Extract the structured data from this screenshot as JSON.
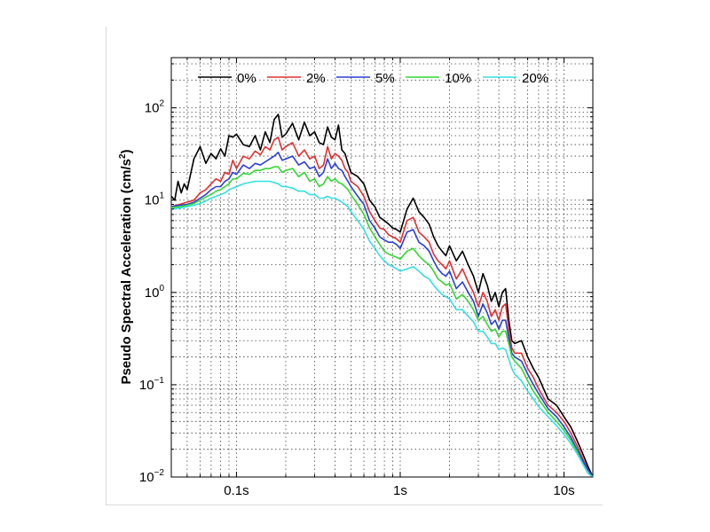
{
  "chart_data": {
    "type": "line",
    "x_scale": "log",
    "y_scale": "log",
    "xlim": [
      0.04,
      15
    ],
    "ylim": [
      0.01,
      350
    ],
    "grid": true,
    "legend_placement": "top",
    "ylabel": "Pseudo Spectral Acceleration (cm/s²)",
    "ylabel_text": "Pseudo Spectral Acceleration (cm/s",
    "ylabel_sup": "2",
    "ylabel_close": ")",
    "x_ticks": [
      {
        "value": 0.1,
        "label": "0.1s"
      },
      {
        "value": 1,
        "label": "1s"
      },
      {
        "value": 10,
        "label": "10s"
      }
    ],
    "y_ticks": [
      {
        "value": 100,
        "base": "10",
        "exp": "2"
      },
      {
        "value": 10,
        "base": "10",
        "exp": "1"
      },
      {
        "value": 1,
        "base": "10",
        "exp": "0"
      },
      {
        "value": 0.1,
        "base": "10",
        "exp": "−1"
      },
      {
        "value": 0.01,
        "base": "10",
        "exp": "−2"
      }
    ],
    "series": [
      {
        "name": "0%",
        "color": "#000000",
        "x": [
          0.04,
          0.042,
          0.044,
          0.046,
          0.048,
          0.05,
          0.055,
          0.06,
          0.065,
          0.07,
          0.075,
          0.08,
          0.085,
          0.09,
          0.095,
          0.1,
          0.11,
          0.12,
          0.13,
          0.14,
          0.15,
          0.16,
          0.17,
          0.18,
          0.19,
          0.2,
          0.22,
          0.24,
          0.26,
          0.28,
          0.3,
          0.32,
          0.34,
          0.36,
          0.38,
          0.4,
          0.42,
          0.44,
          0.46,
          0.48,
          0.5,
          0.55,
          0.6,
          0.65,
          0.7,
          0.75,
          0.8,
          0.85,
          0.9,
          0.95,
          1.0,
          1.1,
          1.2,
          1.3,
          1.4,
          1.5,
          1.6,
          1.7,
          1.8,
          1.9,
          2.0,
          2.2,
          2.4,
          2.6,
          2.8,
          3.0,
          3.2,
          3.4,
          3.6,
          3.8,
          4.0,
          4.2,
          4.4,
          4.6,
          4.8,
          5.0,
          5.5,
          6.0,
          6.5,
          7.0,
          8.0,
          9.0,
          10.0,
          11.0,
          12.0,
          13.0,
          14.0,
          15.0
        ],
        "y": [
          11,
          10,
          16,
          12,
          15,
          13,
          28,
          38,
          25,
          32,
          28,
          36,
          30,
          50,
          48,
          52,
          40,
          38,
          50,
          35,
          55,
          42,
          75,
          85,
          48,
          52,
          68,
          45,
          70,
          50,
          55,
          42,
          40,
          62,
          48,
          45,
          65,
          35,
          32,
          25,
          20,
          18,
          15,
          10,
          8.5,
          6.5,
          6.0,
          5.5,
          5.0,
          4.8,
          4.5,
          8.0,
          10.5,
          7.5,
          6.5,
          5.5,
          4.0,
          3.2,
          2.8,
          2.5,
          3.2,
          2.2,
          2.8,
          2.0,
          1.5,
          1.0,
          1.6,
          1.2,
          0.8,
          1.0,
          0.7,
          1.0,
          1.1,
          0.5,
          0.3,
          0.28,
          0.3,
          0.2,
          0.15,
          0.12,
          0.07,
          0.06,
          0.045,
          0.035,
          0.025,
          0.018,
          0.013,
          0.01
        ]
      },
      {
        "name": "2%",
        "color": "#e03030",
        "x": [
          0.04,
          0.045,
          0.05,
          0.055,
          0.06,
          0.065,
          0.07,
          0.075,
          0.08,
          0.085,
          0.09,
          0.095,
          0.1,
          0.11,
          0.12,
          0.13,
          0.14,
          0.15,
          0.16,
          0.17,
          0.18,
          0.19,
          0.2,
          0.22,
          0.24,
          0.26,
          0.28,
          0.3,
          0.32,
          0.34,
          0.36,
          0.38,
          0.4,
          0.42,
          0.44,
          0.46,
          0.48,
          0.5,
          0.55,
          0.6,
          0.65,
          0.7,
          0.75,
          0.8,
          0.85,
          0.9,
          0.95,
          1.0,
          1.1,
          1.2,
          1.3,
          1.4,
          1.5,
          1.6,
          1.7,
          1.8,
          1.9,
          2.0,
          2.2,
          2.4,
          2.6,
          2.8,
          3.0,
          3.2,
          3.4,
          3.6,
          3.8,
          4.0,
          4.2,
          4.4,
          4.6,
          4.8,
          5.0,
          5.5,
          6.0,
          6.5,
          7.0,
          8.0,
          9.0,
          10.0,
          11.0,
          12.0,
          13.0,
          14.0,
          15.0
        ],
        "y": [
          8.5,
          9.0,
          9.5,
          10,
          12,
          13,
          15,
          17,
          16,
          20,
          19,
          27,
          22,
          30,
          28,
          34,
          31,
          38,
          35,
          45,
          48,
          35,
          38,
          42,
          30,
          35,
          28,
          30,
          22,
          24,
          38,
          28,
          32,
          30,
          27,
          22,
          20,
          16,
          14,
          11,
          7.5,
          6.0,
          5.0,
          4.8,
          4.2,
          4.0,
          3.8,
          3.5,
          6.0,
          6.5,
          4.5,
          4.0,
          3.5,
          2.6,
          2.2,
          2.0,
          1.8,
          2.2,
          1.4,
          1.8,
          1.3,
          1.0,
          0.7,
          1.0,
          0.8,
          0.55,
          0.65,
          0.5,
          0.7,
          0.75,
          0.4,
          0.25,
          0.22,
          0.22,
          0.15,
          0.12,
          0.09,
          0.06,
          0.05,
          0.04,
          0.03,
          0.022,
          0.016,
          0.012,
          0.01
        ]
      },
      {
        "name": "5%",
        "color": "#2a3fd6",
        "x": [
          0.04,
          0.045,
          0.05,
          0.055,
          0.06,
          0.065,
          0.07,
          0.075,
          0.08,
          0.085,
          0.09,
          0.095,
          0.1,
          0.11,
          0.12,
          0.13,
          0.14,
          0.15,
          0.16,
          0.17,
          0.18,
          0.19,
          0.2,
          0.22,
          0.24,
          0.26,
          0.28,
          0.3,
          0.32,
          0.34,
          0.36,
          0.38,
          0.4,
          0.42,
          0.44,
          0.46,
          0.48,
          0.5,
          0.55,
          0.6,
          0.65,
          0.7,
          0.75,
          0.8,
          0.85,
          0.9,
          0.95,
          1.0,
          1.1,
          1.2,
          1.3,
          1.4,
          1.5,
          1.6,
          1.7,
          1.8,
          1.9,
          2.0,
          2.2,
          2.4,
          2.6,
          2.8,
          3.0,
          3.2,
          3.4,
          3.6,
          3.8,
          4.0,
          4.2,
          4.4,
          4.6,
          4.8,
          5.0,
          5.5,
          6.0,
          6.5,
          7.0,
          8.0,
          9.0,
          10.0,
          11.0,
          12.0,
          13.0,
          14.0,
          15.0
        ],
        "y": [
          8.5,
          8.8,
          9.0,
          9.5,
          10.5,
          11.5,
          13,
          14,
          14,
          16,
          17,
          20,
          19,
          24,
          22,
          25,
          24,
          26,
          28,
          30,
          33,
          27,
          28,
          30,
          24,
          26,
          22,
          23,
          18,
          20,
          28,
          22,
          25,
          22,
          21,
          18,
          16,
          14,
          11,
          9.0,
          6.0,
          5.0,
          4.0,
          3.7,
          3.5,
          3.5,
          3.3,
          3.0,
          4.5,
          4.8,
          3.5,
          3.2,
          2.8,
          2.2,
          1.8,
          1.6,
          1.5,
          1.7,
          1.1,
          1.3,
          1.0,
          0.8,
          0.55,
          0.75,
          0.6,
          0.45,
          0.5,
          0.4,
          0.5,
          0.5,
          0.32,
          0.22,
          0.2,
          0.18,
          0.13,
          0.1,
          0.08,
          0.055,
          0.045,
          0.035,
          0.027,
          0.02,
          0.015,
          0.012,
          0.01
        ]
      },
      {
        "name": "10%",
        "color": "#33d633",
        "x": [
          0.04,
          0.045,
          0.05,
          0.055,
          0.06,
          0.065,
          0.07,
          0.075,
          0.08,
          0.085,
          0.09,
          0.095,
          0.1,
          0.11,
          0.12,
          0.13,
          0.14,
          0.15,
          0.16,
          0.17,
          0.18,
          0.19,
          0.2,
          0.22,
          0.24,
          0.26,
          0.28,
          0.3,
          0.32,
          0.34,
          0.36,
          0.38,
          0.4,
          0.42,
          0.44,
          0.46,
          0.48,
          0.5,
          0.55,
          0.6,
          0.65,
          0.7,
          0.75,
          0.8,
          0.85,
          0.9,
          0.95,
          1.0,
          1.1,
          1.2,
          1.3,
          1.4,
          1.5,
          1.6,
          1.7,
          1.8,
          1.9,
          2.0,
          2.2,
          2.4,
          2.6,
          2.8,
          3.0,
          3.2,
          3.4,
          3.6,
          3.8,
          4.0,
          4.2,
          4.4,
          4.6,
          4.8,
          5.0,
          5.5,
          6.0,
          6.5,
          7.0,
          8.0,
          9.0,
          10.0,
          11.0,
          12.0,
          13.0,
          14.0,
          15.0
        ],
        "y": [
          8.3,
          8.5,
          8.8,
          9.2,
          10,
          10.8,
          11.5,
          12.5,
          13,
          14,
          15,
          17,
          17,
          19.5,
          19,
          21,
          21,
          22,
          22,
          23,
          23,
          20,
          21,
          22,
          18,
          20,
          16,
          17,
          14,
          15,
          18,
          16,
          17,
          15.5,
          15,
          14,
          13,
          11.5,
          9.0,
          7.0,
          5.0,
          4.0,
          3.3,
          2.8,
          2.6,
          2.5,
          2.4,
          2.3,
          2.8,
          3.0,
          2.5,
          2.2,
          2.0,
          1.7,
          1.4,
          1.3,
          1.2,
          1.25,
          0.85,
          0.95,
          0.8,
          0.65,
          0.5,
          0.55,
          0.45,
          0.38,
          0.4,
          0.33,
          0.38,
          0.38,
          0.28,
          0.2,
          0.18,
          0.15,
          0.11,
          0.085,
          0.07,
          0.05,
          0.04,
          0.032,
          0.025,
          0.019,
          0.014,
          0.011,
          0.01
        ]
      },
      {
        "name": "20%",
        "color": "#33e0e0",
        "x": [
          0.04,
          0.045,
          0.05,
          0.055,
          0.06,
          0.065,
          0.07,
          0.075,
          0.08,
          0.085,
          0.09,
          0.095,
          0.1,
          0.11,
          0.12,
          0.13,
          0.14,
          0.15,
          0.16,
          0.17,
          0.18,
          0.19,
          0.2,
          0.22,
          0.24,
          0.26,
          0.28,
          0.3,
          0.32,
          0.34,
          0.36,
          0.38,
          0.4,
          0.42,
          0.44,
          0.46,
          0.48,
          0.5,
          0.55,
          0.6,
          0.65,
          0.7,
          0.75,
          0.8,
          0.85,
          0.9,
          0.95,
          1.0,
          1.1,
          1.2,
          1.3,
          1.4,
          1.5,
          1.6,
          1.7,
          1.8,
          1.9,
          2.0,
          2.2,
          2.4,
          2.6,
          2.8,
          3.0,
          3.2,
          3.4,
          3.6,
          3.8,
          4.0,
          4.2,
          4.4,
          4.6,
          4.8,
          5.0,
          5.5,
          6.0,
          6.5,
          7.0,
          8.0,
          9.0,
          10.0,
          11.0,
          12.0,
          13.0,
          14.0,
          15.0
        ],
        "y": [
          8.0,
          8.2,
          8.5,
          8.8,
          9.2,
          9.8,
          10.5,
          11,
          11.5,
          12,
          13,
          13.5,
          14,
          15,
          15.5,
          16,
          16,
          16,
          16,
          15.5,
          15,
          14,
          14,
          13.5,
          12.5,
          12.5,
          11.5,
          11.5,
          10.5,
          10.5,
          11,
          10.5,
          10.5,
          10,
          9.5,
          9.0,
          8.5,
          7.5,
          6.0,
          4.8,
          3.6,
          3.0,
          2.5,
          2.2,
          2.0,
          1.9,
          1.8,
          1.7,
          1.8,
          1.9,
          1.7,
          1.5,
          1.4,
          1.2,
          1.05,
          0.95,
          0.9,
          0.85,
          0.65,
          0.65,
          0.55,
          0.48,
          0.38,
          0.38,
          0.33,
          0.28,
          0.28,
          0.24,
          0.25,
          0.24,
          0.19,
          0.15,
          0.13,
          0.11,
          0.085,
          0.07,
          0.058,
          0.045,
          0.036,
          0.029,
          0.023,
          0.018,
          0.014,
          0.011,
          0.01
        ]
      }
    ]
  }
}
